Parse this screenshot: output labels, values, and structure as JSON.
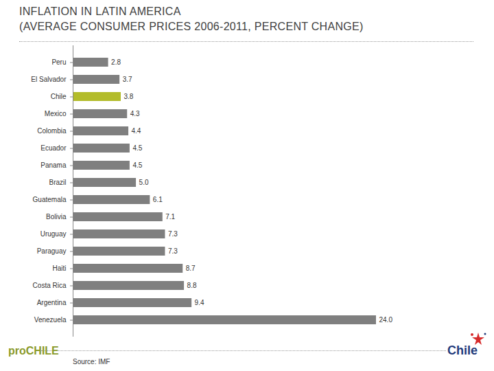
{
  "chart_data": {
    "type": "bar",
    "title": "INFLATION IN LATIN AMERICA",
    "subtitle": "(AVERAGE CONSUMER PRICES 2006-2011, PERCENT CHANGE)",
    "categories": [
      "Peru",
      "El Salvador",
      "Chile",
      "Mexico",
      "Colombia",
      "Ecuador",
      "Panama",
      "Brazil",
      "Guatemala",
      "Bolivia",
      "Uruguay",
      "Paraguay",
      "Haiti",
      "Costa Rica",
      "Argentina",
      "Venezuela"
    ],
    "values": [
      2.8,
      3.7,
      3.8,
      4.3,
      4.4,
      4.5,
      4.5,
      5.0,
      6.1,
      7.1,
      7.3,
      7.3,
      8.7,
      8.8,
      9.4,
      24.0
    ],
    "value_labels": [
      "2.8",
      "3.7",
      "3.8",
      "4.3",
      "4.4",
      "4.5",
      "4.5",
      "5.0",
      "6.1",
      "7.1",
      "7.3",
      "7.3",
      "8.7",
      "8.8",
      "9.4",
      "24.0"
    ],
    "colors": [
      "#7f7f7f",
      "#7f7f7f",
      "#b3bc2a",
      "#7f7f7f",
      "#7f7f7f",
      "#7f7f7f",
      "#7f7f7f",
      "#7f7f7f",
      "#7f7f7f",
      "#7f7f7f",
      "#7f7f7f",
      "#7f7f7f",
      "#7f7f7f",
      "#7f7f7f",
      "#7f7f7f",
      "#7f7f7f"
    ],
    "orientation": "horizontal",
    "data_labels": true,
    "tick_labels": "y",
    "xlim": [
      0,
      24
    ],
    "xticks": [],
    "source": "Source: IMF",
    "logos": [
      "proCHILE",
      "Chile"
    ]
  }
}
